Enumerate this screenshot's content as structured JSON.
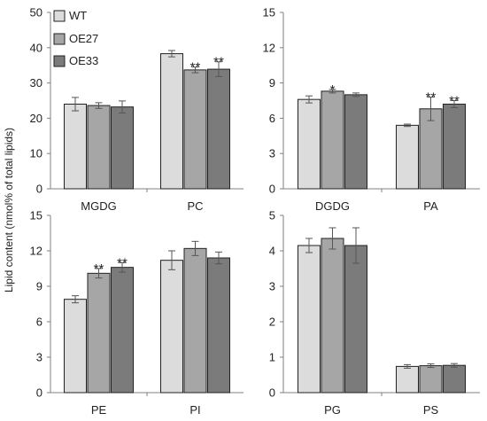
{
  "shared_ylabel": "Lipid content (nmol% of total lipids)",
  "legend": [
    {
      "label": "WT",
      "color": "#dcdcdc"
    },
    {
      "label": "OE27",
      "color": "#a6a6a6"
    },
    {
      "label": "OE33",
      "color": "#7b7b7b"
    }
  ],
  "colors": {
    "WT": "#dcdcdc",
    "OE27": "#a6a6a6",
    "OE33": "#7b7b7b",
    "outline": "#222222",
    "axis": "#808080"
  },
  "chart_data": [
    {
      "type": "bar",
      "categories": [
        "MGDG",
        "PC"
      ],
      "series": [
        {
          "name": "WT",
          "values": [
            24.0,
            38.3
          ],
          "errors": [
            1.9,
            0.9
          ],
          "sig": [
            "",
            ""
          ]
        },
        {
          "name": "OE27",
          "values": [
            23.6,
            33.7
          ],
          "errors": [
            0.8,
            0.8
          ],
          "sig": [
            "",
            "**"
          ]
        },
        {
          "name": "OE33",
          "values": [
            23.2,
            33.9
          ],
          "errors": [
            1.7,
            2.1
          ],
          "sig": [
            "",
            "**"
          ]
        }
      ],
      "ylim": [
        0,
        50
      ],
      "yticks": [
        "0",
        "10",
        "20",
        "30",
        "40",
        "50"
      ]
    },
    {
      "type": "bar",
      "categories": [
        "DGDG",
        "PA"
      ],
      "series": [
        {
          "name": "WT",
          "values": [
            7.6,
            5.4
          ],
          "errors": [
            0.3,
            0.1
          ],
          "sig": [
            "",
            ""
          ]
        },
        {
          "name": "OE27",
          "values": [
            8.3,
            6.8
          ],
          "errors": [
            0.15,
            1.0
          ],
          "sig": [
            "*",
            "**"
          ]
        },
        {
          "name": "OE33",
          "values": [
            8.0,
            7.2
          ],
          "errors": [
            0.15,
            0.3
          ],
          "sig": [
            "",
            "**"
          ]
        }
      ],
      "ylim": [
        0,
        15
      ],
      "yticks": [
        "0",
        "3",
        "6",
        "9",
        "12",
        "15"
      ]
    },
    {
      "type": "bar",
      "categories": [
        "PE",
        "PI"
      ],
      "series": [
        {
          "name": "WT",
          "values": [
            7.9,
            11.2
          ],
          "errors": [
            0.3,
            0.8
          ],
          "sig": [
            "",
            ""
          ]
        },
        {
          "name": "OE27",
          "values": [
            10.1,
            12.2
          ],
          "errors": [
            0.4,
            0.6
          ],
          "sig": [
            "**",
            ""
          ]
        },
        {
          "name": "OE33",
          "values": [
            10.6,
            11.4
          ],
          "errors": [
            0.4,
            0.5
          ],
          "sig": [
            "**",
            ""
          ]
        }
      ],
      "ylim": [
        0,
        15
      ],
      "yticks": [
        "0",
        "3",
        "6",
        "9",
        "12",
        "15"
      ]
    },
    {
      "type": "bar",
      "categories": [
        "PG",
        "PS"
      ],
      "series": [
        {
          "name": "WT",
          "values": [
            4.15,
            0.74
          ],
          "errors": [
            0.2,
            0.05
          ],
          "sig": [
            "",
            ""
          ]
        },
        {
          "name": "OE27",
          "values": [
            4.35,
            0.76
          ],
          "errors": [
            0.3,
            0.05
          ],
          "sig": [
            "",
            ""
          ]
        },
        {
          "name": "OE33",
          "values": [
            4.15,
            0.77
          ],
          "errors": [
            0.5,
            0.05
          ],
          "sig": [
            "",
            ""
          ]
        }
      ],
      "ylim": [
        0,
        5
      ],
      "yticks": [
        "0",
        "1",
        "2",
        "3",
        "4",
        "5"
      ]
    }
  ]
}
